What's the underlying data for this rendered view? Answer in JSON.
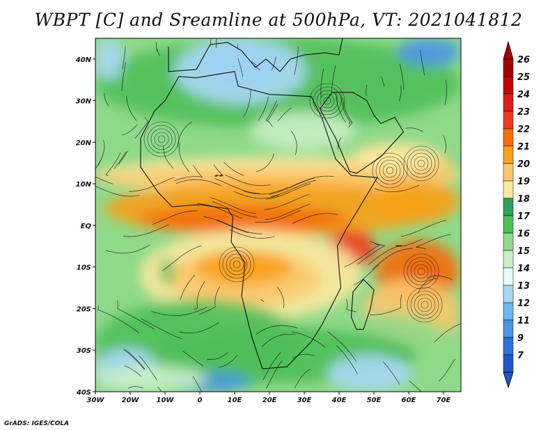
{
  "title": "WBPT [C] and Sreamline at 500hPa, VT: 2021041812",
  "footer": "GrADS: IGES/COLA",
  "map": {
    "lon_range": [
      -30,
      75
    ],
    "lat_range": [
      -40,
      45
    ],
    "x_ticks": [
      {
        "value": -30,
        "label": "30W"
      },
      {
        "value": -20,
        "label": "20W"
      },
      {
        "value": -10,
        "label": "10W"
      },
      {
        "value": 0,
        "label": "0"
      },
      {
        "value": 10,
        "label": "10E"
      },
      {
        "value": 20,
        "label": "20E"
      },
      {
        "value": 30,
        "label": "30E"
      },
      {
        "value": 40,
        "label": "40E"
      },
      {
        "value": 50,
        "label": "50E"
      },
      {
        "value": 60,
        "label": "60E"
      },
      {
        "value": 70,
        "label": "70E"
      }
    ],
    "y_ticks": [
      {
        "value": 40,
        "label": "40N"
      },
      {
        "value": 30,
        "label": "30N"
      },
      {
        "value": 20,
        "label": "20N"
      },
      {
        "value": 10,
        "label": "10N"
      },
      {
        "value": 0,
        "label": "EQ"
      },
      {
        "value": -10,
        "label": "10S"
      },
      {
        "value": -20,
        "label": "20S"
      },
      {
        "value": -30,
        "label": "30S"
      },
      {
        "value": -40,
        "label": "40S"
      }
    ]
  },
  "colorbar": {
    "levels": [
      {
        "label": "26",
        "color": "#a50000"
      },
      {
        "label": "25",
        "color": "#c80000"
      },
      {
        "label": "24",
        "color": "#e31a1c"
      },
      {
        "label": "23",
        "color": "#f03b20"
      },
      {
        "label": "22",
        "color": "#f46d0a"
      },
      {
        "label": "21",
        "color": "#f9a01a"
      },
      {
        "label": "20",
        "color": "#fbc66b"
      },
      {
        "label": "19",
        "color": "#fde9a0"
      },
      {
        "label": "18",
        "color": "#2ca25f"
      },
      {
        "label": "17",
        "color": "#4fbf5a"
      },
      {
        "label": "16",
        "color": "#8fd98a"
      },
      {
        "label": "15",
        "color": "#c9f0c4"
      },
      {
        "label": "14",
        "color": "#e7fbff"
      },
      {
        "label": "13",
        "color": "#a9d8f5"
      },
      {
        "label": "12",
        "color": "#6fb6ec"
      },
      {
        "label": "11",
        "color": "#4a95e6"
      },
      {
        "label": "9",
        "color": "#2f72d8"
      },
      {
        "label": "7",
        "color": "#1f55c9"
      }
    ],
    "top_color": "#a50000",
    "bottom_color": "#1f55c9"
  },
  "colors": {
    "green": "#4fbf5a",
    "light_green": "#8fd98a",
    "pale_green": "#c9f0c4",
    "blue": "#4a95e6",
    "light_blue": "#a9d8f5",
    "yellow": "#fde9a0",
    "light_orange": "#fbc66b",
    "orange": "#f9a01a",
    "dark_orange": "#f46d0a",
    "red": "#f03b20"
  }
}
